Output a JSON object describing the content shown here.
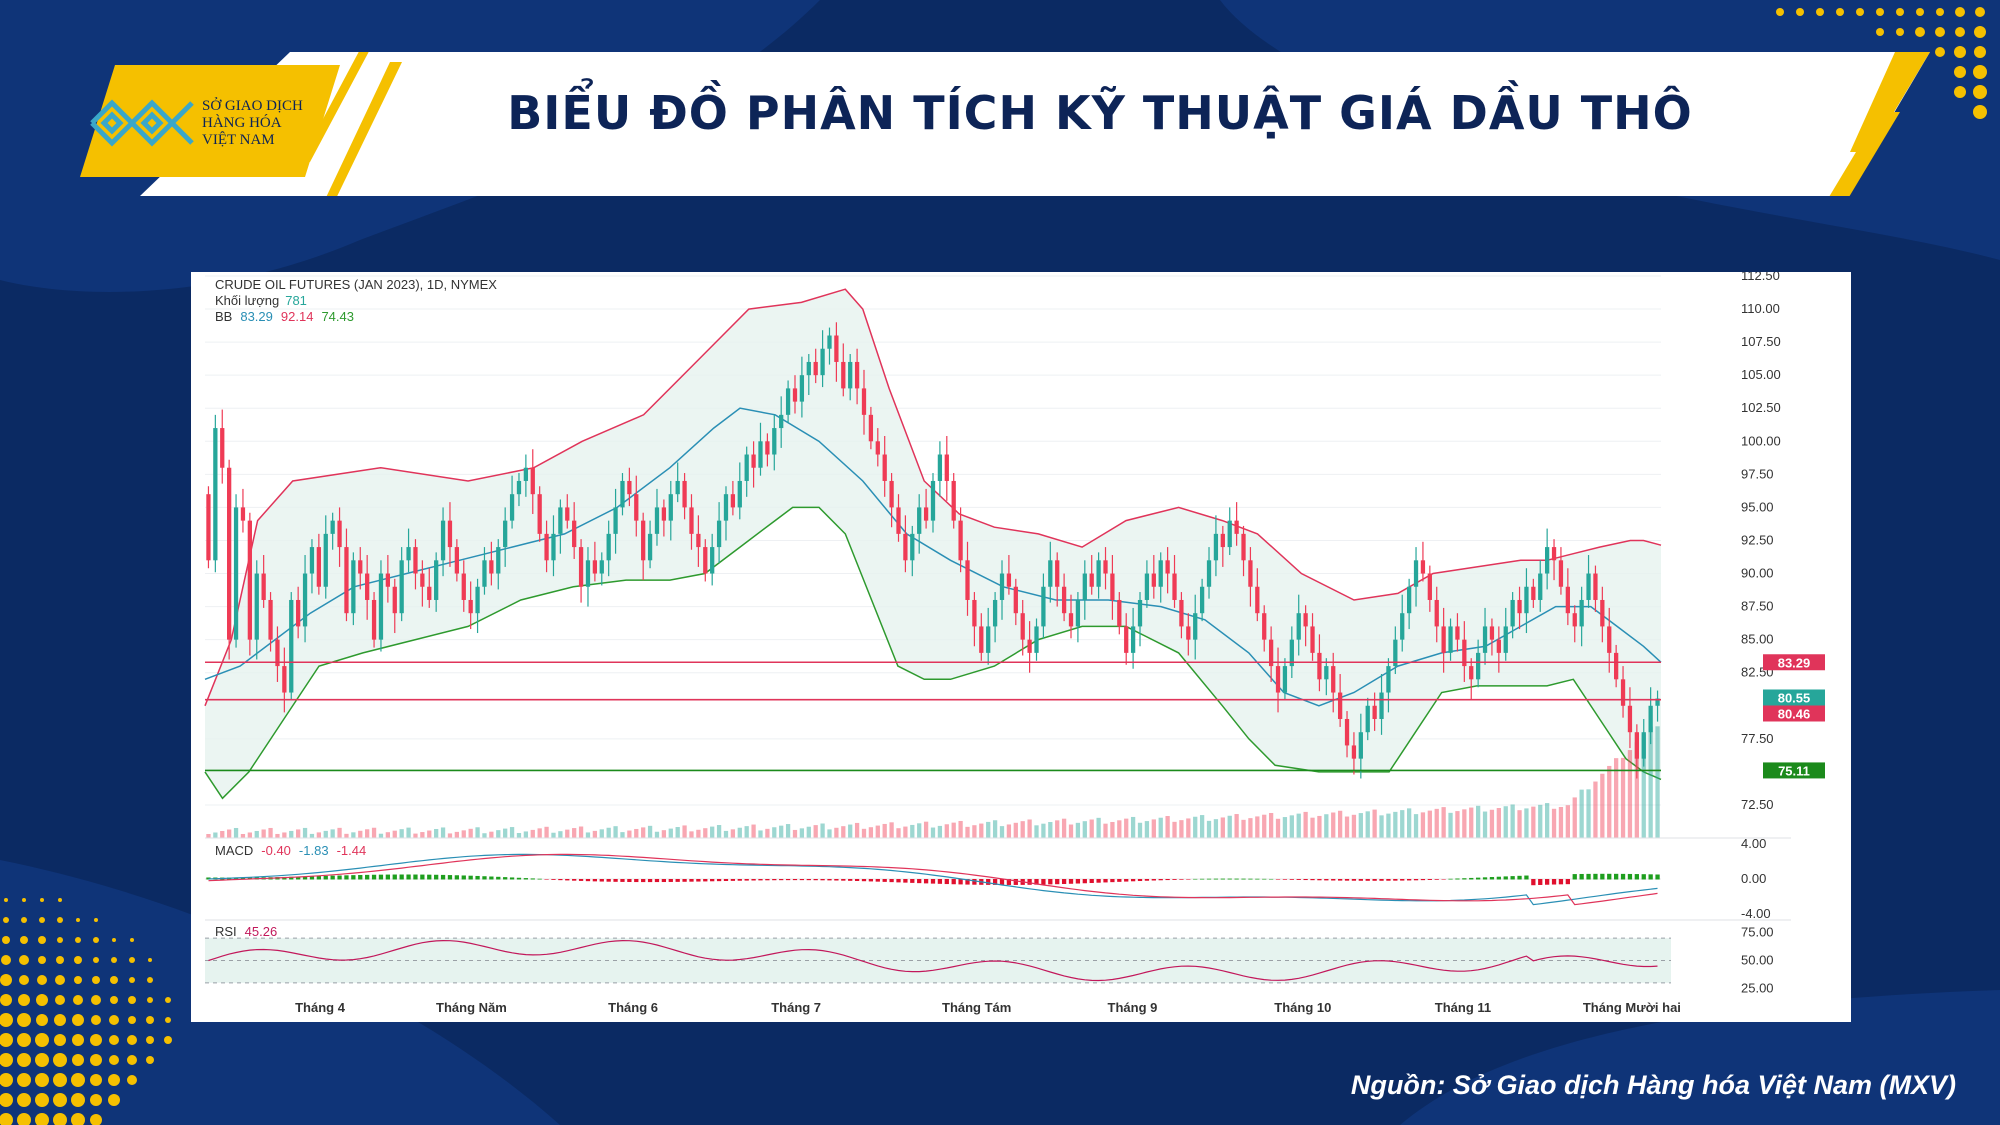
{
  "header": {
    "title": "BIỂU ĐỒ PHÂN TÍCH KỸ THUẬT GIÁ DẦU THÔ",
    "logo_lines": [
      "SỞ GIAO DỊCH",
      "HÀNG HÓA",
      "VIỆT NAM"
    ]
  },
  "source": "Nguồn: Sở Giao dịch Hàng hóa Việt Nam (MXV)",
  "colors": {
    "background": "#0b2a63",
    "accent_yellow": "#f5c000",
    "up_candle": "#26a69a",
    "down_candle": "#ef3b55",
    "bb_upper": "#e0345a",
    "bb_basis": "#2a8fb5",
    "bb_lower": "#2e9a2e",
    "bb_fill": "#e6f3ef"
  },
  "chart_data": {
    "type": "candlestick",
    "title": "CRUDE OIL FUTURES (JAN 2023), 1D, NYMEX",
    "volume_label": "Khối lượng",
    "volume_value": "781",
    "bb_label": "BB",
    "bb_values": [
      "83.29",
      "92.14",
      "74.43"
    ],
    "price_axis": {
      "ylim": [
        70,
        112.5
      ],
      "ticks": [
        "112.50",
        "110.00",
        "107.50",
        "105.00",
        "102.50",
        "100.00",
        "97.50",
        "95.00",
        "92.50",
        "90.00",
        "87.50",
        "85.00",
        "82.50",
        "77.50",
        "72.50"
      ]
    },
    "x_labels": [
      "Tháng 4",
      "Tháng Năm",
      "Tháng 6",
      "Tháng 7",
      "Tháng Tám",
      "Tháng 9",
      "Tháng 10",
      "Tháng 11",
      "Tháng Mười hai"
    ],
    "horizontal_levels": [
      {
        "value": 83.29,
        "label": "83.29",
        "color": "#e0345a"
      },
      {
        "value": 80.55,
        "label": "80.55",
        "color": "#26a69a"
      },
      {
        "value": 80.46,
        "label": "80.46",
        "color": "#e0345a"
      },
      {
        "value": 75.11,
        "label": "75.11",
        "color": "#1b8a1b"
      }
    ],
    "bb_upper_points": [
      [
        0,
        80
      ],
      [
        6,
        85
      ],
      [
        12,
        94
      ],
      [
        20,
        97
      ],
      [
        40,
        98
      ],
      [
        60,
        97
      ],
      [
        75,
        98
      ],
      [
        86,
        100
      ],
      [
        100,
        102
      ],
      [
        112,
        106
      ],
      [
        124,
        110
      ],
      [
        136,
        110.5
      ],
      [
        146,
        111.5
      ],
      [
        150,
        110
      ],
      [
        156,
        104
      ],
      [
        164,
        97
      ],
      [
        172,
        94.5
      ],
      [
        180,
        93.5
      ],
      [
        190,
        93
      ],
      [
        200,
        92
      ],
      [
        210,
        94
      ],
      [
        222,
        95
      ],
      [
        232,
        94
      ],
      [
        240,
        93
      ],
      [
        250,
        90
      ],
      [
        262,
        88
      ],
      [
        272,
        88.5
      ],
      [
        280,
        90
      ],
      [
        290,
        90.5
      ],
      [
        300,
        91
      ],
      [
        306,
        91
      ],
      [
        312,
        91.5
      ],
      [
        318,
        92
      ],
      [
        325,
        92.5
      ],
      [
        328,
        92.5
      ],
      [
        332,
        92.14
      ]
    ],
    "bb_basis_points": [
      [
        0,
        82
      ],
      [
        8,
        83
      ],
      [
        16,
        85
      ],
      [
        24,
        87
      ],
      [
        34,
        89
      ],
      [
        46,
        90
      ],
      [
        58,
        91
      ],
      [
        70,
        92
      ],
      [
        82,
        93
      ],
      [
        94,
        95
      ],
      [
        106,
        98
      ],
      [
        116,
        101
      ],
      [
        122,
        102.5
      ],
      [
        130,
        102
      ],
      [
        140,
        100
      ],
      [
        150,
        97
      ],
      [
        160,
        93
      ],
      [
        170,
        91
      ],
      [
        182,
        89
      ],
      [
        194,
        88
      ],
      [
        206,
        88
      ],
      [
        218,
        87.5
      ],
      [
        228,
        86.5
      ],
      [
        238,
        84
      ],
      [
        246,
        81
      ],
      [
        254,
        80
      ],
      [
        262,
        81
      ],
      [
        272,
        83
      ],
      [
        282,
        84
      ],
      [
        292,
        84.5
      ],
      [
        300,
        86
      ],
      [
        308,
        87.5
      ],
      [
        316,
        87.5
      ],
      [
        322,
        86
      ],
      [
        328,
        84.5
      ],
      [
        332,
        83.29
      ]
    ],
    "bb_lower_points": [
      [
        0,
        75
      ],
      [
        4,
        73
      ],
      [
        10,
        75
      ],
      [
        18,
        79
      ],
      [
        26,
        83
      ],
      [
        36,
        84
      ],
      [
        48,
        85
      ],
      [
        60,
        86
      ],
      [
        72,
        88
      ],
      [
        84,
        89
      ],
      [
        96,
        89.5
      ],
      [
        106,
        89.5
      ],
      [
        114,
        90
      ],
      [
        122,
        92
      ],
      [
        130,
        94
      ],
      [
        134,
        95
      ],
      [
        140,
        95
      ],
      [
        146,
        93
      ],
      [
        152,
        88
      ],
      [
        158,
        83
      ],
      [
        164,
        82
      ],
      [
        170,
        82
      ],
      [
        180,
        83
      ],
      [
        190,
        85
      ],
      [
        200,
        86
      ],
      [
        210,
        86
      ],
      [
        222,
        84
      ],
      [
        232,
        80
      ],
      [
        238,
        77.5
      ],
      [
        244,
        75.5
      ],
      [
        254,
        75
      ],
      [
        262,
        75
      ],
      [
        270,
        75
      ],
      [
        276,
        78
      ],
      [
        282,
        81
      ],
      [
        290,
        81.5
      ],
      [
        300,
        81.5
      ],
      [
        306,
        81.5
      ],
      [
        312,
        82
      ],
      [
        318,
        79
      ],
      [
        324,
        76
      ],
      [
        328,
        75
      ],
      [
        332,
        74.43
      ]
    ],
    "candles": [
      [
        96,
        91
      ],
      [
        91,
        101
      ],
      [
        101,
        98
      ],
      [
        98,
        85
      ],
      [
        85,
        95
      ],
      [
        95,
        94
      ],
      [
        94,
        85
      ],
      [
        85,
        90
      ],
      [
        90,
        88
      ],
      [
        88,
        85
      ],
      [
        85,
        83
      ],
      [
        83,
        81
      ],
      [
        81,
        88
      ],
      [
        88,
        86
      ],
      [
        86,
        90
      ],
      [
        90,
        92
      ],
      [
        92,
        89
      ],
      [
        89,
        93
      ],
      [
        93,
        94
      ],
      [
        94,
        92
      ],
      [
        92,
        87
      ],
      [
        87,
        91
      ],
      [
        91,
        90
      ],
      [
        90,
        88
      ],
      [
        88,
        85
      ],
      [
        85,
        90
      ],
      [
        90,
        89
      ],
      [
        89,
        87
      ],
      [
        87,
        91
      ],
      [
        91,
        92
      ],
      [
        92,
        90
      ],
      [
        90,
        89
      ],
      [
        89,
        88
      ],
      [
        88,
        91
      ],
      [
        91,
        94
      ],
      [
        94,
        92
      ],
      [
        92,
        90
      ],
      [
        90,
        88
      ],
      [
        88,
        87
      ],
      [
        87,
        89
      ],
      [
        89,
        91
      ],
      [
        91,
        90
      ],
      [
        90,
        92
      ],
      [
        92,
        94
      ],
      [
        94,
        96
      ],
      [
        96,
        97
      ],
      [
        97,
        98
      ],
      [
        98,
        96
      ],
      [
        96,
        93
      ],
      [
        93,
        91
      ],
      [
        91,
        93
      ],
      [
        93,
        95
      ],
      [
        95,
        94
      ],
      [
        94,
        92
      ],
      [
        92,
        89
      ],
      [
        89,
        91
      ],
      [
        91,
        90
      ],
      [
        90,
        91
      ],
      [
        91,
        93
      ],
      [
        93,
        95
      ],
      [
        95,
        97
      ],
      [
        97,
        96
      ],
      [
        96,
        94
      ],
      [
        94,
        91
      ],
      [
        91,
        93
      ],
      [
        93,
        95
      ],
      [
        95,
        94
      ],
      [
        94,
        96
      ],
      [
        96,
        97
      ],
      [
        97,
        95
      ],
      [
        95,
        93
      ],
      [
        93,
        92
      ],
      [
        92,
        90
      ],
      [
        90,
        92
      ],
      [
        92,
        94
      ],
      [
        94,
        96
      ],
      [
        96,
        95
      ],
      [
        95,
        97
      ],
      [
        97,
        99
      ],
      [
        99,
        98
      ],
      [
        98,
        100
      ],
      [
        100,
        99
      ],
      [
        99,
        101
      ],
      [
        101,
        102
      ],
      [
        102,
        104
      ],
      [
        104,
        103
      ],
      [
        103,
        105
      ],
      [
        105,
        106
      ],
      [
        106,
        105
      ],
      [
        105,
        107
      ],
      [
        107,
        108
      ],
      [
        108,
        106
      ],
      [
        106,
        104
      ],
      [
        104,
        106
      ],
      [
        106,
        104
      ],
      [
        104,
        102
      ],
      [
        102,
        100
      ],
      [
        100,
        99
      ],
      [
        99,
        97
      ],
      [
        97,
        95
      ],
      [
        95,
        93
      ],
      [
        93,
        91
      ],
      [
        91,
        93
      ],
      [
        93,
        95
      ],
      [
        95,
        94
      ],
      [
        94,
        97
      ],
      [
        97,
        99
      ],
      [
        99,
        97
      ],
      [
        97,
        94
      ],
      [
        94,
        91
      ],
      [
        91,
        88
      ],
      [
        88,
        86
      ],
      [
        86,
        84
      ],
      [
        84,
        86
      ],
      [
        86,
        88
      ],
      [
        88,
        90
      ],
      [
        90,
        89
      ],
      [
        89,
        87
      ],
      [
        87,
        85
      ],
      [
        85,
        84
      ],
      [
        84,
        86
      ],
      [
        86,
        89
      ],
      [
        89,
        91
      ],
      [
        91,
        89
      ],
      [
        89,
        87
      ],
      [
        87,
        86
      ],
      [
        86,
        88
      ],
      [
        88,
        90
      ],
      [
        90,
        89
      ],
      [
        89,
        91
      ],
      [
        91,
        90
      ],
      [
        90,
        88
      ],
      [
        88,
        86
      ],
      [
        86,
        84
      ],
      [
        84,
        86
      ],
      [
        86,
        88
      ],
      [
        88,
        90
      ],
      [
        90,
        89
      ],
      [
        89,
        91
      ],
      [
        91,
        90
      ],
      [
        90,
        88
      ],
      [
        88,
        86
      ],
      [
        86,
        85
      ],
      [
        85,
        87
      ],
      [
        87,
        89
      ],
      [
        89,
        91
      ],
      [
        91,
        93
      ],
      [
        93,
        92
      ],
      [
        92,
        94
      ],
      [
        94,
        93
      ],
      [
        93,
        91
      ],
      [
        91,
        89
      ],
      [
        89,
        87
      ],
      [
        87,
        85
      ],
      [
        85,
        83
      ],
      [
        83,
        81
      ],
      [
        81,
        83
      ],
      [
        83,
        85
      ],
      [
        85,
        87
      ],
      [
        87,
        86
      ],
      [
        86,
        84
      ],
      [
        84,
        82
      ],
      [
        82,
        83
      ],
      [
        83,
        81
      ],
      [
        81,
        79
      ],
      [
        79,
        77
      ],
      [
        77,
        76
      ],
      [
        76,
        78
      ],
      [
        78,
        80
      ],
      [
        80,
        79
      ],
      [
        79,
        81
      ],
      [
        81,
        83
      ],
      [
        83,
        85
      ],
      [
        85,
        87
      ],
      [
        87,
        89
      ],
      [
        89,
        91
      ],
      [
        91,
        90
      ],
      [
        90,
        88
      ],
      [
        88,
        86
      ],
      [
        86,
        84
      ],
      [
        84,
        86
      ],
      [
        86,
        85
      ],
      [
        85,
        83
      ],
      [
        83,
        82
      ],
      [
        82,
        84
      ],
      [
        84,
        86
      ],
      [
        86,
        85
      ],
      [
        85,
        84
      ],
      [
        84,
        86
      ],
      [
        86,
        88
      ],
      [
        88,
        87
      ],
      [
        87,
        89
      ],
      [
        89,
        88
      ],
      [
        88,
        90
      ],
      [
        90,
        92
      ],
      [
        92,
        91
      ],
      [
        91,
        89
      ],
      [
        89,
        87
      ],
      [
        87,
        86
      ],
      [
        86,
        88
      ],
      [
        88,
        90
      ],
      [
        90,
        88
      ],
      [
        88,
        86
      ],
      [
        86,
        84
      ],
      [
        84,
        82
      ],
      [
        82,
        80
      ],
      [
        80,
        78
      ],
      [
        78,
        76
      ],
      [
        76,
        78
      ],
      [
        78,
        80
      ],
      [
        80,
        80.55
      ]
    ],
    "macd": {
      "label": "MACD",
      "values": [
        "-0.40",
        "-1.83",
        "-1.44"
      ],
      "axis_ticks": [
        "4.00",
        "0.00",
        "-4.00"
      ],
      "ylim": [
        -4,
        4
      ]
    },
    "rsi": {
      "label": "RSI",
      "value": "45.26",
      "axis_ticks": [
        "75.00",
        "50.00",
        "25.00"
      ],
      "ylim": [
        20,
        80
      ]
    }
  }
}
